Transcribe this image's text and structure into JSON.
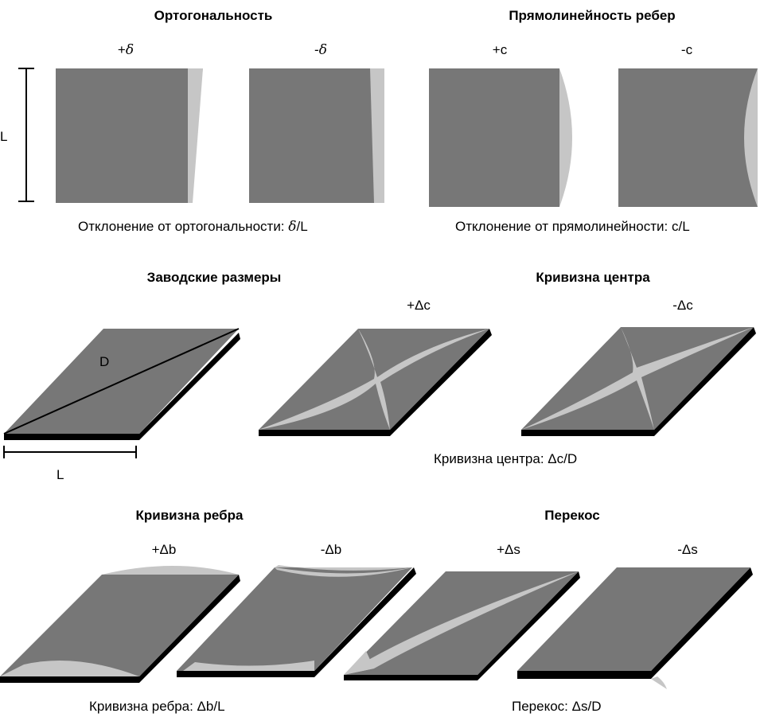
{
  "colors": {
    "tile": "#777777",
    "deviation": "#c6c6c6",
    "edge": "#000000",
    "background": "#ffffff"
  },
  "orthogonality": {
    "title": "Ортогональность",
    "plus_sign": "+",
    "minus_sign": "-",
    "symbol": "δ",
    "caption_prefix": "Отклонение от ортогональности: ",
    "caption_suffix": "/L"
  },
  "edge_straightness": {
    "title": "Прямолинейность ребер",
    "plus_label": "+c",
    "minus_label": "-c",
    "caption": "Отклонение от прямолинейности: c/L"
  },
  "dimension_L": "L",
  "factory_size": {
    "title": "Заводские размеры",
    "diagonal_label": "D",
    "side_label": "L"
  },
  "center_curvature": {
    "title": "Кривизна центра",
    "plus_label": "+Δc",
    "minus_label": "-Δc",
    "caption": "Кривизна центра: Δc/D"
  },
  "edge_curvature": {
    "title": "Кривизна ребра",
    "plus_label": "+Δb",
    "minus_label": "-Δb",
    "caption": "Кривизна ребра: Δb/L"
  },
  "skew": {
    "title": "Перекос",
    "plus_label": "+Δs",
    "minus_label": "-Δs",
    "caption": "Перекос: Δs/D"
  }
}
